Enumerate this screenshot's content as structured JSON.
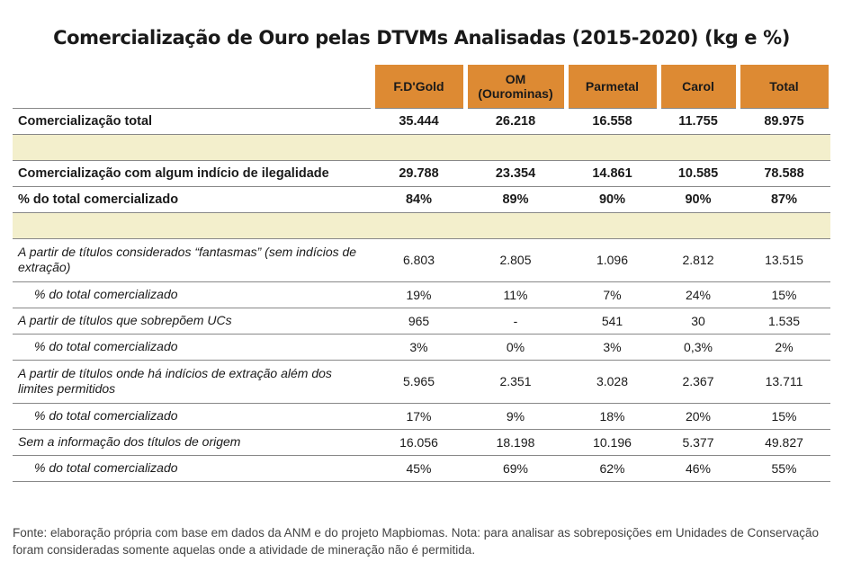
{
  "title": "Comercialização de Ouro pelas DTVMs Analisadas (2015-2020) (kg e %)",
  "columns": [
    "F.D'Gold",
    "OM (Ourominas)",
    "Parmetal",
    "Carol",
    "Total"
  ],
  "column_lines": [
    [
      "F.D'Gold"
    ],
    [
      "OM",
      "(Ourominas)"
    ],
    [
      "Parmetal"
    ],
    [
      "Carol"
    ],
    [
      "Total"
    ]
  ],
  "rows": [
    {
      "label": "Comercialização total",
      "values": [
        "35.444",
        "26.218",
        "16.558",
        "11.755",
        "89.975"
      ]
    },
    {
      "label": "Comercialização com algum indício de ilegalidade",
      "values": [
        "29.788",
        "23.354",
        "14.861",
        "10.585",
        "78.588"
      ]
    },
    {
      "label": "% do total comercializado",
      "values": [
        "84%",
        "89%",
        "90%",
        "90%",
        "87%"
      ]
    },
    {
      "label": "A partir de títulos considerados “fantasmas” (sem indícios de extração)",
      "values": [
        "6.803",
        "2.805",
        "1.096",
        "2.812",
        "13.515"
      ]
    },
    {
      "label": "% do total comercializado",
      "values": [
        "19%",
        "11%",
        "7%",
        "24%",
        "15%"
      ]
    },
    {
      "label": "A partir de títulos que sobrepõem UCs",
      "values": [
        "965",
        "-",
        "541",
        "30",
        "1.535"
      ]
    },
    {
      "label": "% do total comercializado",
      "values": [
        "3%",
        "0%",
        "3%",
        "0,3%",
        "2%"
      ]
    },
    {
      "label": "A partir de títulos onde há indícios de extração além dos limites permitidos",
      "values": [
        "5.965",
        "2.351",
        "3.028",
        "2.367",
        "13.711"
      ]
    },
    {
      "label": "% do total comercializado",
      "values": [
        "17%",
        "9%",
        "18%",
        "20%",
        "15%"
      ]
    },
    {
      "label": "Sem a informação dos títulos de origem",
      "values": [
        "16.056",
        "18.198",
        "10.196",
        "5.377",
        "49.827"
      ]
    },
    {
      "label": "% do total comercializado",
      "values": [
        "45%",
        "69%",
        "62%",
        "46%",
        "55%"
      ]
    }
  ],
  "footnote": "Fonte: elaboração própria com base em dados da ANM e do projeto Mapbiomas. Nota: para analisar as sobreposições em Unidades de Conservação foram consideradas somente aquelas onde a atividade de mineração não é permitida.",
  "colors": {
    "header_accent": "#dd8a33",
    "separator": "#f3efcc"
  }
}
